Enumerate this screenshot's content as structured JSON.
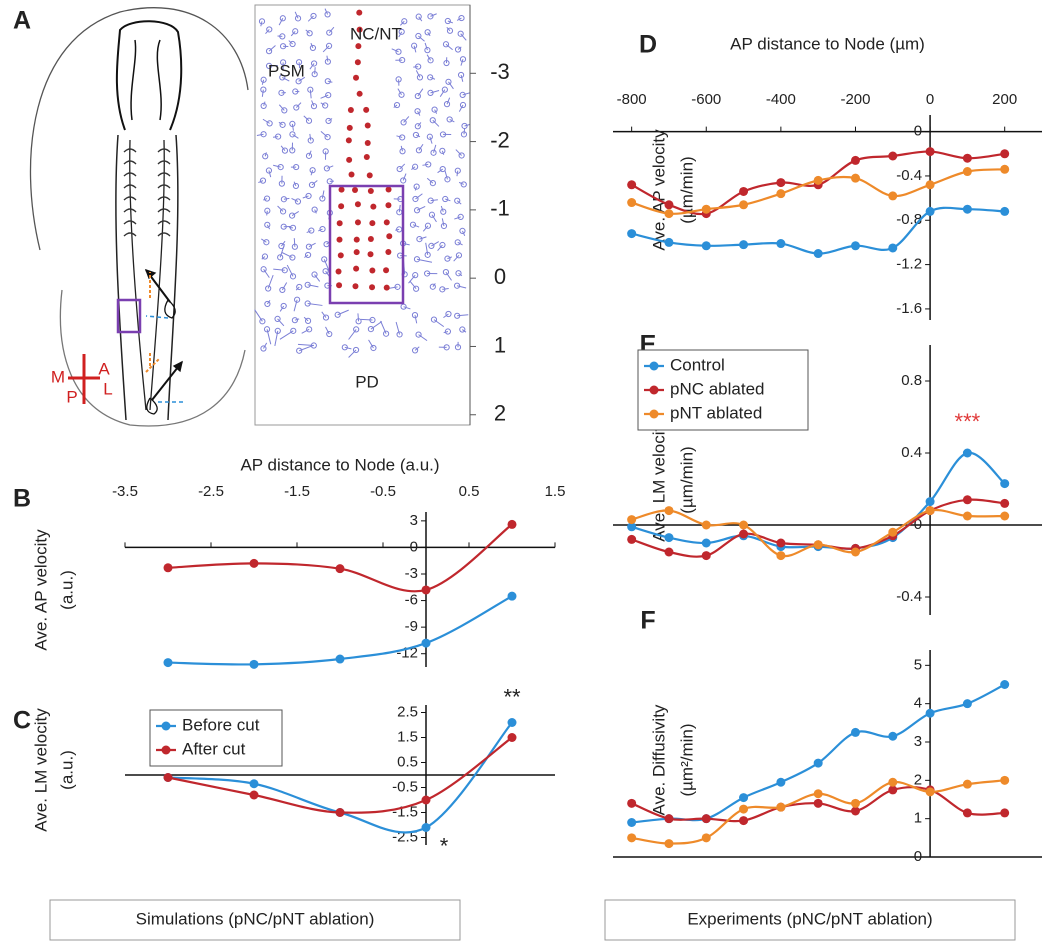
{
  "panel_letters": [
    "A",
    "B",
    "C",
    "D",
    "E",
    "F"
  ],
  "panel_a": {
    "labels": [
      "NC/NT",
      "PSM",
      "PD"
    ],
    "compass": [
      "A",
      "M",
      "L",
      "P"
    ],
    "sim_axis": {
      "ylim": [
        -4,
        2.15
      ],
      "yticks": [
        -3,
        -2,
        -1,
        0,
        1,
        2
      ]
    }
  },
  "chart_data": [
    {
      "type": "line",
      "x_label": "AP distance to Node (a.u.)",
      "y_label": [
        "Ave. AP velocity",
        "(a.u.)"
      ],
      "x": [
        -3,
        -2,
        -1,
        0,
        1
      ],
      "xlim": [
        -3.5,
        1.5
      ],
      "xticks": [
        -3.5,
        -2.5,
        -1.5,
        -0.5,
        0.5,
        1.5
      ],
      "ylim": [
        -13.5,
        4
      ],
      "yticks": [
        3,
        0,
        -3,
        -6,
        -9,
        -12
      ],
      "series": [
        {
          "name": "Before cut",
          "color": "#2b8fd8",
          "values": [
            -13,
            -13.2,
            -12.6,
            -10.8,
            -5.5
          ]
        },
        {
          "name": "After cut",
          "color": "#c0272d",
          "values": [
            -2.3,
            -1.8,
            -2.4,
            -4.8,
            2.6
          ]
        }
      ]
    },
    {
      "type": "line",
      "y_label": [
        "Ave. LM velocity",
        "(a.u.)"
      ],
      "x": [
        -3,
        -2,
        -1,
        0,
        1
      ],
      "xlim": [
        -3.5,
        1.5
      ],
      "ylim": [
        -2.8,
        2.8
      ],
      "yticks": [
        2.5,
        1.5,
        0.5,
        -0.5,
        -1.5,
        -2.5
      ],
      "legend": "upper left",
      "annotations": [
        "**",
        "*"
      ],
      "series": [
        {
          "name": "Before cut",
          "color": "#2b8fd8",
          "values": [
            -0.1,
            -0.35,
            -1.5,
            -2.1,
            2.1
          ]
        },
        {
          "name": "After cut",
          "color": "#c0272d",
          "values": [
            -0.1,
            -0.8,
            -1.5,
            -1.0,
            1.5
          ]
        }
      ]
    },
    {
      "type": "line",
      "x_label": "AP distance to Node (µm)",
      "y_label": [
        "Ave. AP velocity",
        "(µm/min)"
      ],
      "x": [
        -800,
        -700,
        -600,
        -500,
        -400,
        -300,
        -200,
        -100,
        0,
        100,
        200
      ],
      "xlim": [
        -850,
        300
      ],
      "xticks": [
        -800,
        -600,
        -400,
        -200,
        0,
        200
      ],
      "ylim": [
        -1.7,
        0.15
      ],
      "yticks": [
        0,
        -0.4,
        -0.8,
        -1.2,
        -1.6
      ],
      "series": [
        {
          "name": "Control",
          "color": "#2b8fd8",
          "values": [
            -0.92,
            -1.0,
            -1.03,
            -1.02,
            -1.01,
            -1.1,
            -1.03,
            -1.05,
            -0.72,
            -0.7,
            -0.72
          ]
        },
        {
          "name": "pNC ablated",
          "color": "#c0272d",
          "values": [
            -0.48,
            -0.66,
            -0.74,
            -0.54,
            -0.46,
            -0.48,
            -0.26,
            -0.22,
            -0.18,
            -0.24,
            -0.2
          ]
        },
        {
          "name": "pNT ablated",
          "color": "#ee8a2a",
          "values": [
            -0.64,
            -0.74,
            -0.7,
            -0.66,
            -0.56,
            -0.44,
            -0.42,
            -0.58,
            -0.48,
            -0.36,
            -0.34
          ]
        }
      ]
    },
    {
      "type": "line",
      "y_label": [
        "Ave. LM velocity",
        "(µm/min)"
      ],
      "x": [
        -800,
        -700,
        -600,
        -500,
        -400,
        -300,
        -200,
        -100,
        0,
        100,
        200
      ],
      "xlim": [
        -850,
        300
      ],
      "ylim": [
        -0.5,
        1.0
      ],
      "yticks": [
        0.8,
        0.4,
        0,
        -0.4
      ],
      "legend": "upper left",
      "annotations": [
        "***"
      ],
      "annotation_color": "#e03a3a",
      "series": [
        {
          "name": "Control",
          "color": "#2b8fd8",
          "values": [
            -0.01,
            -0.07,
            -0.1,
            -0.06,
            -0.12,
            -0.12,
            -0.13,
            -0.07,
            0.13,
            0.4,
            0.23
          ]
        },
        {
          "name": "pNC ablated",
          "color": "#c0272d",
          "values": [
            -0.08,
            -0.15,
            -0.17,
            -0.05,
            -0.1,
            -0.11,
            -0.13,
            -0.06,
            0.08,
            0.14,
            0.12
          ]
        },
        {
          "name": "pNT ablated",
          "color": "#ee8a2a",
          "values": [
            0.03,
            0.08,
            0.0,
            0.0,
            -0.17,
            -0.11,
            -0.15,
            -0.04,
            0.08,
            0.05,
            0.05
          ]
        }
      ]
    },
    {
      "type": "line",
      "y_label": [
        "Ave. Diffusivity",
        "(µm²/min)"
      ],
      "x": [
        -800,
        -700,
        -600,
        -500,
        -400,
        -300,
        -200,
        -100,
        0,
        100,
        200
      ],
      "xlim": [
        -850,
        300
      ],
      "ylim": [
        0,
        5.4
      ],
      "yticks": [
        0,
        1,
        2,
        3,
        4,
        5
      ],
      "series": [
        {
          "name": "Control",
          "color": "#2b8fd8",
          "values": [
            0.9,
            1.0,
            1.0,
            1.55,
            1.95,
            2.45,
            3.25,
            3.15,
            3.75,
            4.0,
            4.5
          ]
        },
        {
          "name": "pNC ablated",
          "color": "#c0272d",
          "values": [
            1.4,
            1.0,
            1.0,
            0.95,
            1.3,
            1.4,
            1.2,
            1.75,
            1.75,
            1.15,
            1.15
          ]
        },
        {
          "name": "pNT ablated",
          "color": "#ee8a2a",
          "values": [
            0.5,
            0.35,
            0.5,
            1.25,
            1.3,
            1.65,
            1.4,
            1.95,
            1.7,
            1.9,
            2.0
          ]
        }
      ]
    }
  ],
  "footers": [
    "Simulations (pNC/pNT ablation)",
    "Experiments (pNC/pNT ablation)"
  ]
}
